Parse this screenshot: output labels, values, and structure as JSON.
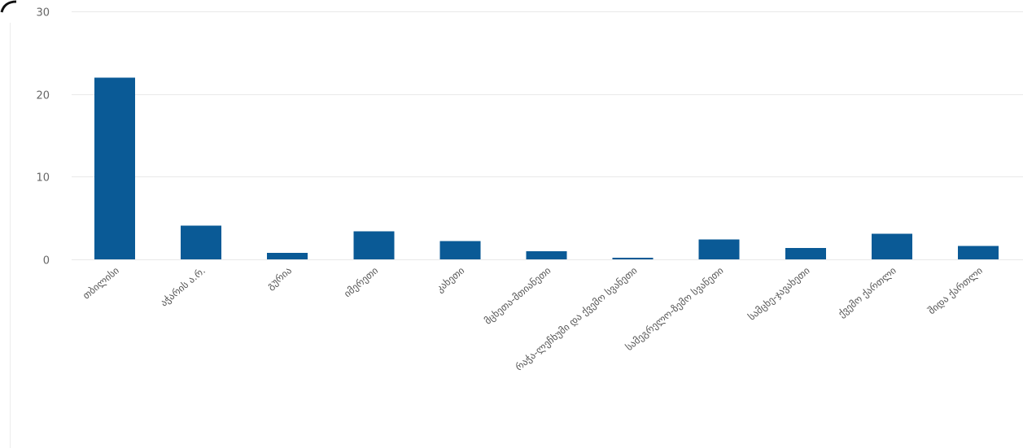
{
  "chart_data": {
    "type": "bar",
    "categories": [
      "თბილისი",
      "აჭარის ა.რ.",
      "გურია",
      "იმერეთი",
      "კახეთი",
      "მცხეთა-მთიანეთი",
      "რაჭა-ლეჩხუმი და ქვემო სვანეთი",
      "სამეგრელო-ზემო სვანეთი",
      "სამცხე-ჯავახეთი",
      "ქვემო ქართლი",
      "შიდა ქართლი"
    ],
    "values": [
      22,
      4.1,
      0.8,
      3.4,
      2.2,
      1.0,
      0.2,
      2.4,
      1.4,
      3.1,
      1.6
    ],
    "ylim": [
      0,
      30
    ],
    "yticks": [
      0,
      10,
      20,
      30
    ],
    "grid": true,
    "legend": "none",
    "colors": {
      "bar": "#0a5a96"
    }
  }
}
